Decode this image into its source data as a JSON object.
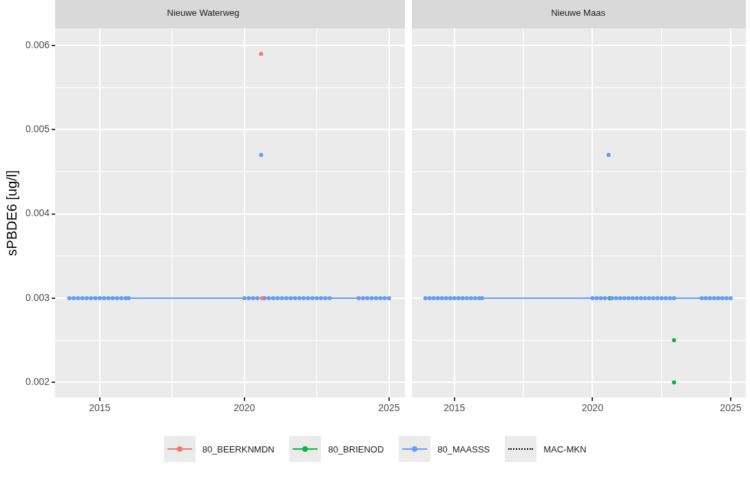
{
  "chart_data": [
    {
      "type": "scatter",
      "title": "Nieuwe Waterweg",
      "ylabel": "sPBDE6 [ug/l]",
      "xlim": [
        2013.46,
        2025.55
      ],
      "ylim": [
        0.00182,
        0.0062
      ],
      "xticks": [
        2015,
        2020,
        2025
      ],
      "yticks": [
        0.002,
        0.003,
        0.004,
        0.005,
        0.006
      ],
      "grid": true,
      "marker": "circle",
      "legend": "bottom",
      "series": [
        {
          "name": "80_BEERKNMDN",
          "type": "scatter",
          "color": "#f8766d",
          "x": [
            2020.58,
            2020.62
          ],
          "values": [
            0.0059,
            0.003
          ]
        },
        {
          "name": "80_MAASSS",
          "type": "line",
          "color": "#619cff",
          "x": [
            2013.95,
            2014.1,
            2014.25,
            2014.4,
            2014.55,
            2014.7,
            2014.85,
            2015.0,
            2015.15,
            2015.3,
            2015.45,
            2015.6,
            2015.75,
            2015.9,
            2016.0,
            2020.0,
            2020.15,
            2020.3,
            2020.45,
            2020.7,
            2020.85,
            2021.0,
            2021.15,
            2021.3,
            2021.45,
            2021.6,
            2021.75,
            2021.9,
            2022.05,
            2022.2,
            2022.35,
            2022.5,
            2022.65,
            2022.8,
            2022.95,
            2023.95,
            2024.1,
            2024.25,
            2024.4,
            2024.55,
            2024.7,
            2024.85,
            2025.0
          ],
          "values": [
            0.003,
            0.003,
            0.003,
            0.003,
            0.003,
            0.003,
            0.003,
            0.003,
            0.003,
            0.003,
            0.003,
            0.003,
            0.003,
            0.003,
            0.003,
            0.003,
            0.003,
            0.003,
            0.003,
            0.003,
            0.003,
            0.003,
            0.003,
            0.003,
            0.003,
            0.003,
            0.003,
            0.003,
            0.003,
            0.003,
            0.003,
            0.003,
            0.003,
            0.003,
            0.003,
            0.003,
            0.003,
            0.003,
            0.003,
            0.003,
            0.003,
            0.003,
            0.003
          ]
        },
        {
          "type": "scatter",
          "color": "#619cff",
          "x": [
            2020.58
          ],
          "values": [
            0.0047
          ]
        },
        {
          "name": "MAC-MKN",
          "type": "line",
          "color": "#000000",
          "line_style": "dotted"
        }
      ]
    },
    {
      "type": "scatter",
      "title": "Nieuwe Maas",
      "xlim": [
        2013.46,
        2025.55
      ],
      "ylim": [
        0.00182,
        0.0062
      ],
      "xticks": [
        2015,
        2020,
        2025
      ],
      "yticks": [
        0.002,
        0.003,
        0.004,
        0.005,
        0.006
      ],
      "grid": true,
      "marker": "circle",
      "tick_labels": "x",
      "series": [
        {
          "name": "80_MAASSS",
          "type": "line",
          "color": "#619cff",
          "x": [
            2013.95,
            2014.1,
            2014.25,
            2014.4,
            2014.55,
            2014.7,
            2014.85,
            2015.0,
            2015.15,
            2015.3,
            2015.45,
            2015.6,
            2015.75,
            2015.9,
            2016.0,
            2020.0,
            2020.15,
            2020.3,
            2020.45,
            2020.7,
            2020.85,
            2021.0,
            2021.15,
            2021.3,
            2021.45,
            2021.6,
            2021.75,
            2021.9,
            2022.05,
            2022.2,
            2022.35,
            2022.5,
            2022.65,
            2022.8,
            2022.95,
            2023.95,
            2024.1,
            2024.25,
            2024.4,
            2024.55,
            2024.7,
            2024.85,
            2025.0
          ],
          "values": [
            0.003,
            0.003,
            0.003,
            0.003,
            0.003,
            0.003,
            0.003,
            0.003,
            0.003,
            0.003,
            0.003,
            0.003,
            0.003,
            0.003,
            0.003,
            0.003,
            0.003,
            0.003,
            0.003,
            0.003,
            0.003,
            0.003,
            0.003,
            0.003,
            0.003,
            0.003,
            0.003,
            0.003,
            0.003,
            0.003,
            0.003,
            0.003,
            0.003,
            0.003,
            0.003,
            0.003,
            0.003,
            0.003,
            0.003,
            0.003,
            0.003,
            0.003,
            0.003
          ]
        },
        {
          "type": "scatter",
          "color": "#619cff",
          "x": [
            2020.58
          ],
          "values": [
            0.0047
          ]
        },
        {
          "name": "80_BRIENOD",
          "type": "scatter",
          "color": "#00ba38",
          "x": [
            2020.62,
            2022.95,
            2022.95
          ],
          "values": [
            0.003,
            0.0025,
            0.002
          ]
        }
      ]
    }
  ]
}
